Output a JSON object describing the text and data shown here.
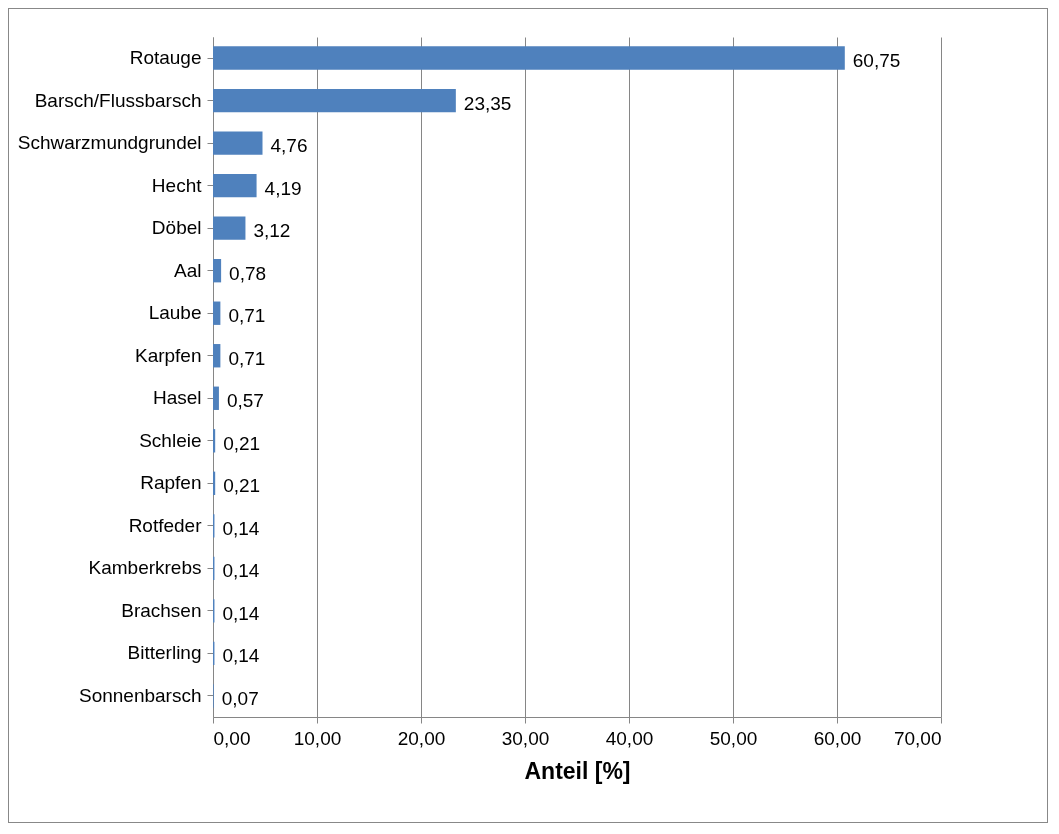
{
  "chart_data": {
    "type": "bar",
    "orientation": "horizontal",
    "xlabel": "Anteil [%]",
    "categories": [
      "Rotauge",
      "Barsch/Flussbarsch",
      "Schwarzmundgrundel",
      "Hecht",
      "Döbel",
      "Aal",
      "Laube",
      "Karpfen",
      "Hasel",
      "Schleie",
      "Rapfen",
      "Rotfeder",
      "Kamberkrebs",
      "Brachsen",
      "Bitterling",
      "Sonnenbarsch"
    ],
    "values": [
      60.75,
      23.35,
      4.76,
      4.19,
      3.12,
      0.78,
      0.71,
      0.71,
      0.57,
      0.21,
      0.21,
      0.14,
      0.14,
      0.14,
      0.14,
      0.07
    ],
    "value_labels": [
      "60,75",
      "23,35",
      "4,76",
      "4,19",
      "3,12",
      "0,78",
      "0,71",
      "0,71",
      "0,57",
      "0,21",
      "0,21",
      "0,14",
      "0,14",
      "0,14",
      "0,14",
      "0,07"
    ],
    "color": "#4f81bd",
    "xlim": [
      0,
      70
    ],
    "xticks": [
      {
        "value": 0,
        "label": "0,00"
      },
      {
        "value": 10,
        "label": "10,00"
      },
      {
        "value": 20,
        "label": "20,00"
      },
      {
        "value": 30,
        "label": "30,00"
      },
      {
        "value": 40,
        "label": "40,00"
      },
      {
        "value": 50,
        "label": "50,00"
      },
      {
        "value": 60,
        "label": "60,00"
      },
      {
        "value": 70,
        "label": "70,00"
      }
    ],
    "grid": "x"
  }
}
